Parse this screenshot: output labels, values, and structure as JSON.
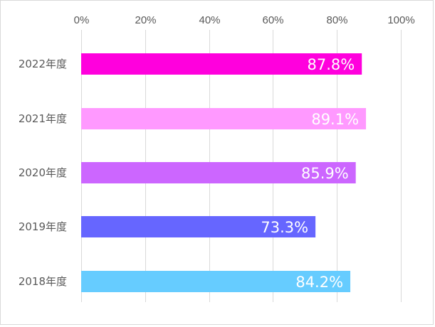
{
  "chart_data": {
    "type": "bar",
    "orientation": "horizontal",
    "categories": [
      "2022年度",
      "2021年度",
      "2020年度",
      "2019年度",
      "2018年度"
    ],
    "values": [
      87.8,
      89.1,
      85.9,
      73.3,
      84.2
    ],
    "value_labels": [
      "87.8%",
      "89.1%",
      "85.9%",
      "73.3%",
      "84.2%"
    ],
    "colors": [
      "#ff00dd",
      "#ff99ff",
      "#cc66ff",
      "#6666ff",
      "#66ccff"
    ],
    "xlim": [
      0,
      100
    ],
    "x_ticks": [
      0,
      20,
      40,
      60,
      80,
      100
    ],
    "x_tick_labels": [
      "0%",
      "20%",
      "40%",
      "60%",
      "80%",
      "100%"
    ],
    "grid": true,
    "legend": "none",
    "title": "",
    "xlabel": "",
    "ylabel": ""
  }
}
